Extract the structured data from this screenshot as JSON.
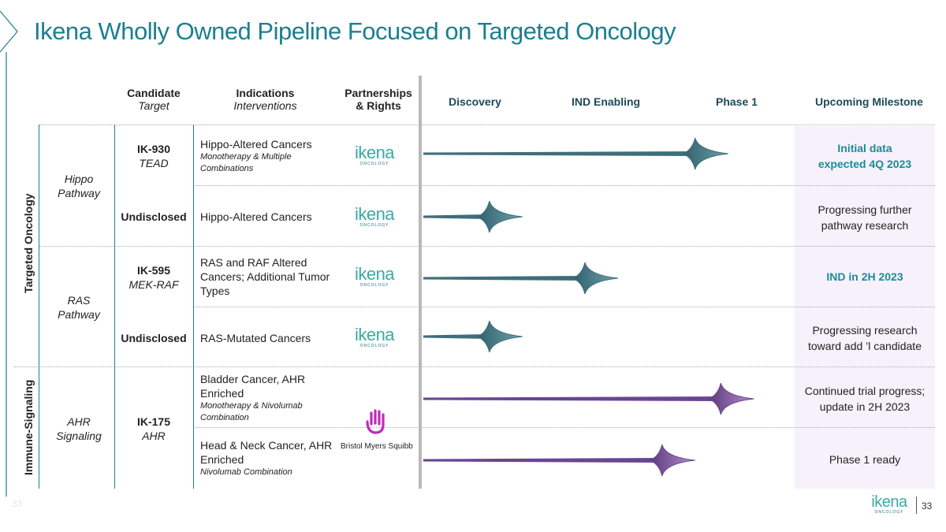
{
  "title": "Ikena Wholly Owned Pipeline Focused on Targeted Oncology",
  "headers": {
    "candidate": "Candidate",
    "target": "Target",
    "indications": "Indications",
    "interventions": "Interventions",
    "partnerships": "Partnerships",
    "rights": "& Rights",
    "discovery": "Discovery",
    "ind_enabling": "IND Enabling",
    "phase1": "Phase 1",
    "milestone": "Upcoming Milestone"
  },
  "categories": {
    "targeted": "Targeted Oncology",
    "immune": "Immune-Signaling"
  },
  "pathways": {
    "hippo_l1": "Hippo",
    "hippo_l2": "Pathway",
    "ras_l1": "RAS",
    "ras_l2": "Pathway",
    "ahr_l1": "AHR",
    "ahr_l2": "Signaling"
  },
  "programs": [
    {
      "candidate": "IK-930",
      "target": "TEAD",
      "indication": "Hippo-Altered Cancers",
      "intervention": "Monotherapy & Multiple Combinations",
      "milestone_l1": "Initial data",
      "milestone_l2": "expected 4Q 2023",
      "stage": "Phase 1",
      "progress": 0.83
    },
    {
      "candidate": "Undisclosed",
      "indication": "Hippo-Altered Cancers",
      "milestone_l1": "Progressing further",
      "milestone_l2": "pathway research",
      "stage": "Discovery",
      "progress": 0.27
    },
    {
      "candidate": "IK-595",
      "target": "MEK-RAF",
      "indication_l1": "RAS and RAF Altered",
      "indication_l2": "Cancers; Additional Tumor",
      "indication_l3": "Types",
      "milestone": "IND in 2H 2023",
      "stage": "IND Enabling",
      "progress": 0.53
    },
    {
      "candidate": "Undisclosed",
      "indication": "RAS-Mutated Cancers",
      "milestone_l1": "Progressing research",
      "milestone_l2": "toward add ’l candidate",
      "stage": "Discovery",
      "progress": 0.27
    },
    {
      "candidate": "IK-175",
      "target": "AHR",
      "indication_l1": "Bladder Cancer, AHR",
      "indication_l2": "Enriched",
      "intervention": "Monotherapy & Nivolumab Combination",
      "milestone_l1": "Continued trial progress;",
      "milestone_l2": "update in 2H 2023",
      "stage": "Phase 1",
      "progress": 0.9
    },
    {
      "indication_l1": "Head & Neck Cancer, AHR",
      "indication_l2": "Enriched",
      "intervention": "Nivolumab Combination",
      "milestone": "Phase 1 ready",
      "stage": "IND Enabling",
      "progress": 0.74
    }
  ],
  "logos": {
    "ikena": "ikena",
    "ikena_sub": "ONCOLOGY",
    "bms": "Bristol Myers Squibb"
  },
  "footer": {
    "page": "33",
    "left": "33",
    "brand": "ikena",
    "brand_sub": "ONCOLOGY"
  },
  "colors": {
    "teal": "#1b7f8f",
    "arrow_teal": "#4a7f8c",
    "arrow_purple": "#8a5aa8",
    "milestone_bg": "#f6f1fb"
  }
}
